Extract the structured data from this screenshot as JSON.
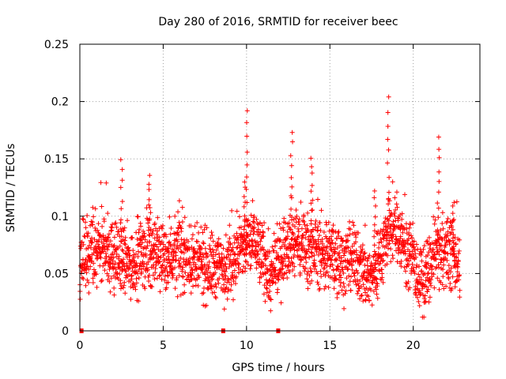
{
  "chart_data": {
    "type": "scatter",
    "title": "Day 280 of 2016, SRMTID for receiver beec",
    "xlabel": "GPS time / hours",
    "ylabel": "SRMTID / TECUs",
    "xlim": [
      0,
      24
    ],
    "ylim": [
      0,
      0.25
    ],
    "xticks": [
      0,
      5,
      10,
      15,
      20
    ],
    "xtick_labels": [
      "0",
      "5",
      "10",
      "15",
      "20"
    ],
    "yticks": [
      0,
      0.05,
      0.1,
      0.15,
      0.2,
      0.25
    ],
    "ytick_labels": [
      "0",
      "0.05",
      "0.1",
      "0.15",
      "0.2",
      "0.25"
    ],
    "grid": true,
    "marker": "+",
    "color": "#ff0000",
    "series": [
      {
        "name": "SRMTID",
        "data_range_hours": [
          0,
          22.8
        ],
        "typical_range": [
          0.025,
          0.11
        ],
        "baseline_profile": [
          [
            0.0,
            0.058
          ],
          [
            1.0,
            0.075
          ],
          [
            2.0,
            0.065
          ],
          [
            3.0,
            0.058
          ],
          [
            4.0,
            0.07
          ],
          [
            5.0,
            0.065
          ],
          [
            6.0,
            0.068
          ],
          [
            7.0,
            0.058
          ],
          [
            8.0,
            0.055
          ],
          [
            9.0,
            0.06
          ],
          [
            10.0,
            0.075
          ],
          [
            10.5,
            0.08
          ],
          [
            11.5,
            0.045
          ],
          [
            12.5,
            0.08
          ],
          [
            13.5,
            0.075
          ],
          [
            14.5,
            0.068
          ],
          [
            15.5,
            0.062
          ],
          [
            16.5,
            0.06
          ],
          [
            17.5,
            0.045
          ],
          [
            18.5,
            0.085
          ],
          [
            19.0,
            0.09
          ],
          [
            20.0,
            0.06
          ],
          [
            20.5,
            0.04
          ],
          [
            21.5,
            0.07
          ],
          [
            22.5,
            0.065
          ],
          [
            22.8,
            0.06
          ]
        ],
        "notable_peaks": [
          {
            "x": 2.5,
            "y": 0.15
          },
          {
            "x": 4.2,
            "y": 0.136
          },
          {
            "x": 9.9,
            "y": 0.13
          },
          {
            "x": 10.0,
            "y": 0.192
          },
          {
            "x": 12.7,
            "y": 0.173
          },
          {
            "x": 13.9,
            "y": 0.152
          },
          {
            "x": 17.7,
            "y": 0.122
          },
          {
            "x": 18.5,
            "y": 0.204
          },
          {
            "x": 21.5,
            "y": 0.169
          },
          {
            "x": 22.4,
            "y": 0.112
          }
        ]
      }
    ],
    "gap_markers_x": [
      0.1,
      8.6,
      11.9
    ]
  }
}
